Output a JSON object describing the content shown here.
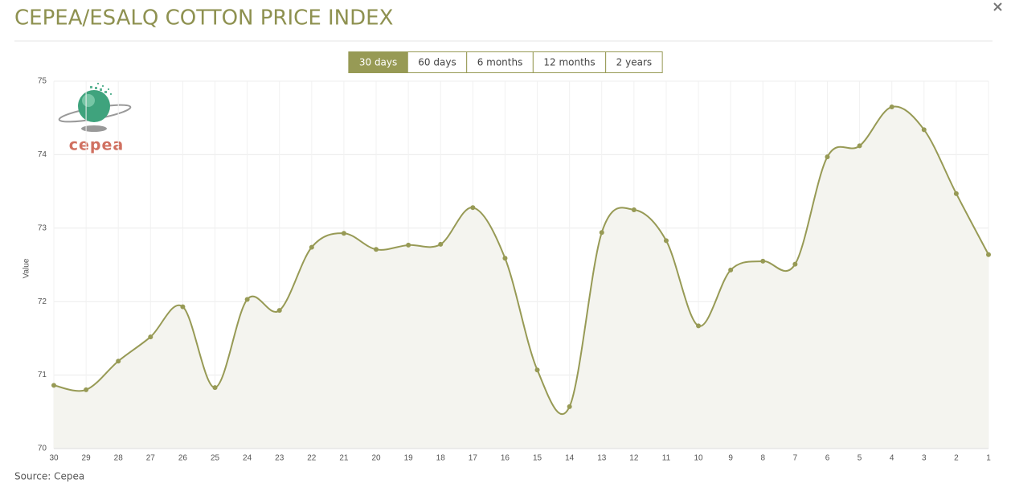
{
  "header": {
    "title": "CEPEA/ESALQ COTTON PRICE INDEX"
  },
  "tabs": {
    "items": [
      "30 days",
      "60 days",
      "6 months",
      "12 months",
      "2 years"
    ],
    "active": 0
  },
  "logo_text": "cepea",
  "source": "Source: Cepea",
  "chart_data": {
    "type": "area",
    "y_label": "Value",
    "color": "#979a55",
    "fill": "#f4f4ef",
    "grid": true,
    "categories": [
      "30",
      "29",
      "28",
      "27",
      "26",
      "25",
      "24",
      "23",
      "22",
      "21",
      "20",
      "19",
      "18",
      "17",
      "16",
      "15",
      "14",
      "13",
      "12",
      "11",
      "10",
      "9",
      "8",
      "7",
      "6",
      "5",
      "4",
      "3",
      "2",
      "1"
    ],
    "values": [
      70.86,
      70.8,
      71.19,
      71.52,
      71.93,
      70.83,
      72.03,
      71.88,
      72.74,
      72.93,
      72.71,
      72.77,
      72.78,
      73.28,
      72.59,
      71.07,
      70.57,
      72.94,
      73.25,
      72.83,
      71.67,
      72.43,
      72.55,
      72.51,
      73.97,
      74.12,
      74.65,
      74.34,
      73.47,
      72.64
    ],
    "ylim": [
      70,
      75
    ],
    "yticks": [
      70,
      71,
      72,
      73,
      74,
      75
    ]
  }
}
